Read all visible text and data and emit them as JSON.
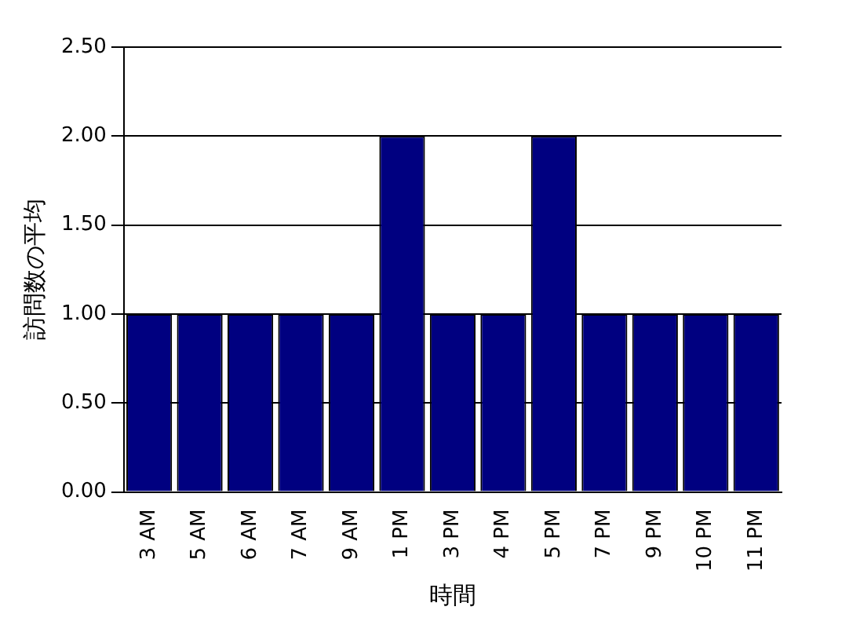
{
  "chart_data": {
    "type": "bar",
    "xlabel": "時間",
    "ylabel": "訪問数の平均",
    "categories": [
      "3 AM",
      "5 AM",
      "6 AM",
      "7 AM",
      "9 AM",
      "1 PM",
      "3 PM",
      "4 PM",
      "5 PM",
      "7 PM",
      "9 PM",
      "10 PM",
      "11 PM"
    ],
    "values": [
      1,
      1,
      1,
      1,
      1,
      2,
      1,
      1,
      2,
      1,
      1,
      1,
      1
    ],
    "color": "#000080",
    "ylim": [
      0,
      2.5
    ],
    "yticks": [
      {
        "value": 0,
        "label": "0.00"
      },
      {
        "value": 0.5,
        "label": "0.50"
      },
      {
        "value": 1,
        "label": "1.00"
      },
      {
        "value": 1.5,
        "label": "1.50"
      },
      {
        "value": 2,
        "label": "2.00"
      },
      {
        "value": 2.5,
        "label": "2.50"
      }
    ],
    "grid": "y",
    "legend": false
  }
}
